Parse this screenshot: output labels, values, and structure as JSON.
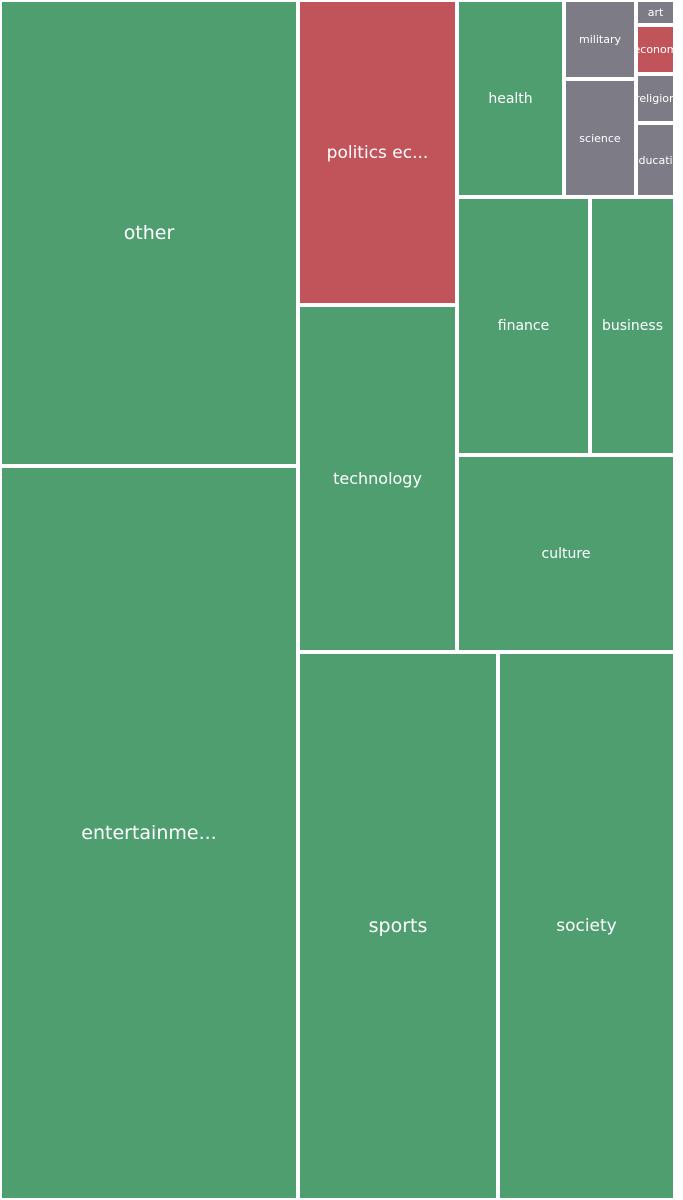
{
  "chart_data": {
    "type": "treemap",
    "colors": {
      "positive": "#4f9e6f",
      "negative": "#c1545b",
      "neutral": "#7c7b86"
    },
    "cells": [
      {
        "label": "other",
        "value": 155,
        "status": "positive"
      },
      {
        "label": "entertainme...",
        "value": 241,
        "status": "positive"
      },
      {
        "label": "politics ec...",
        "value": 53,
        "status": "negative"
      },
      {
        "label": "technology",
        "value": 61,
        "status": "positive"
      },
      {
        "label": "sports",
        "value": 120,
        "status": "positive"
      },
      {
        "label": "society",
        "value": 106,
        "status": "positive"
      },
      {
        "label": "health",
        "value": 23,
        "status": "positive"
      },
      {
        "label": "military",
        "value": 6,
        "status": "neutral"
      },
      {
        "label": "science",
        "value": 9,
        "status": "neutral"
      },
      {
        "label": "art",
        "value": 1,
        "status": "neutral"
      },
      {
        "label": "econom",
        "value": 2,
        "status": "negative"
      },
      {
        "label": "religion",
        "value": 2,
        "status": "neutral"
      },
      {
        "label": "educatio",
        "value": 3,
        "status": "neutral"
      },
      {
        "label": "finance",
        "value": 37,
        "status": "positive"
      },
      {
        "label": "business",
        "value": 23,
        "status": "positive"
      },
      {
        "label": "culture",
        "value": 47,
        "status": "positive"
      }
    ]
  }
}
